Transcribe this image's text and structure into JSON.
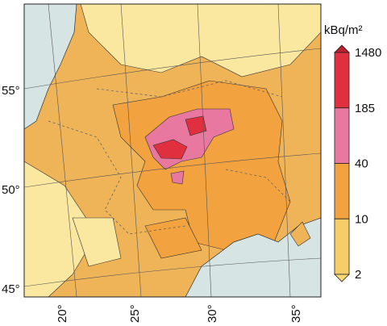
{
  "map": {
    "unit_label": "kBq/m²",
    "latitude_labels": [
      "55°",
      "50°",
      "45°"
    ],
    "longitude_labels": [
      "20°",
      "25°",
      "30°",
      "35°"
    ],
    "legend": {
      "levels": [
        1480,
        185,
        40,
        10,
        2
      ],
      "colors": [
        "#e03040",
        "#e8789f",
        "#f2a23e",
        "#f8cc66"
      ],
      "over_color": "#b8202e",
      "under_color": "#f8d870"
    }
  }
}
